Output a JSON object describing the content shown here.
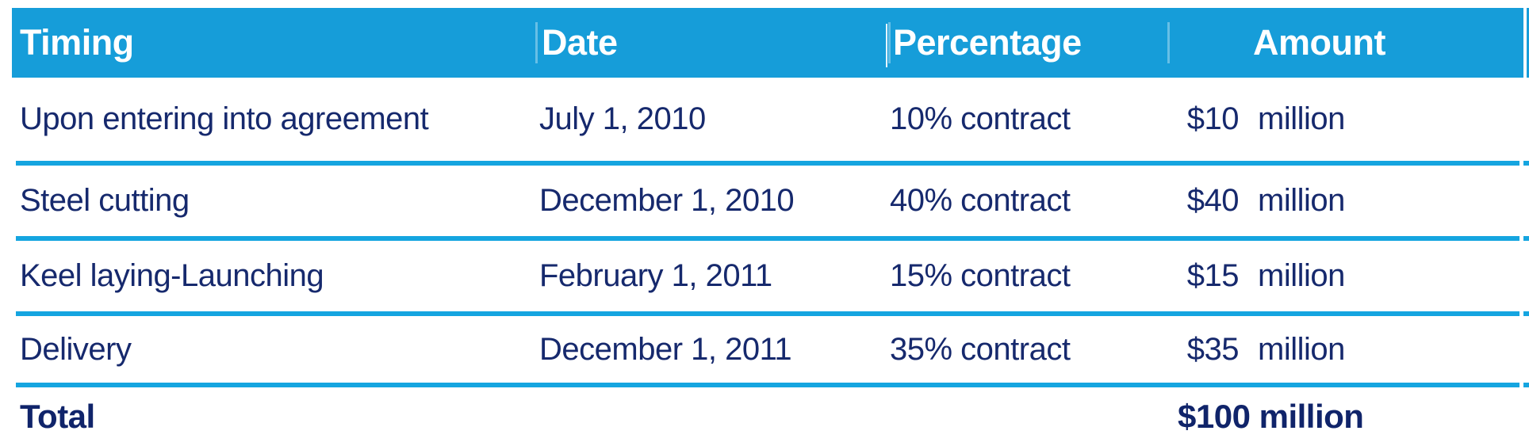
{
  "colors": {
    "header_bg": "#169DD9",
    "row_line": "#15A5E0",
    "header_text": "#FFFFFF",
    "body_text": "#16296D",
    "total_text": "#10246A"
  },
  "table": {
    "headers": {
      "timing": "Timing",
      "date": "Date",
      "percentage": "Percentage",
      "amount": "Amount"
    },
    "rows": [
      {
        "timing": "Upon entering into agreement",
        "date": "July 1, 2010",
        "percentage": "10% contract",
        "amount_value": "$10",
        "amount_unit": "million"
      },
      {
        "timing": "Steel cutting",
        "date": "December 1, 2010",
        "percentage": "40% contract",
        "amount_value": "$40",
        "amount_unit": "million"
      },
      {
        "timing": "Keel laying-Launching",
        "date": "February 1, 2011",
        "percentage": "15% contract",
        "amount_value": "$15",
        "amount_unit": "million"
      },
      {
        "timing": "Delivery",
        "date": "December 1, 2011",
        "percentage": "35% contract",
        "amount_value": "$35",
        "amount_unit": "million"
      }
    ],
    "total_label": "Total",
    "total_amount": "$100 million"
  },
  "chart_data": {
    "type": "table",
    "columns": [
      "Timing",
      "Date",
      "Percentage",
      "Amount"
    ],
    "rows": [
      [
        "Upon entering into agreement",
        "July 1, 2010",
        "10% contract",
        "$10 million"
      ],
      [
        "Steel cutting",
        "December 1, 2010",
        "40% contract",
        "$40 million"
      ],
      [
        "Keel laying-Launching",
        "February 1, 2011",
        "15% contract",
        "$15 million"
      ],
      [
        "Delivery",
        "December 1, 2011",
        "35% contract",
        "$35 million"
      ]
    ],
    "total_row": [
      "Total",
      "",
      "",
      "$100 million"
    ]
  }
}
